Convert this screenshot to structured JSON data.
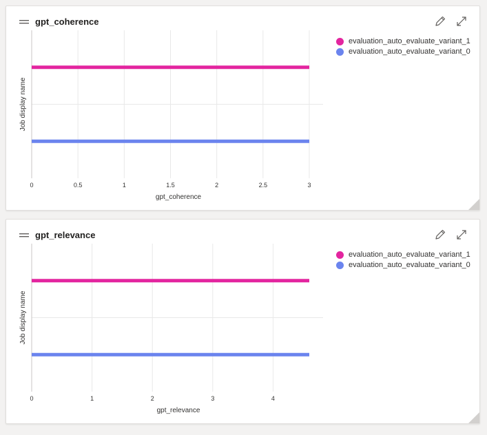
{
  "colors": {
    "variant_1": "#e3259f",
    "variant_0": "#6b84ee",
    "grid": "#e8e8e8",
    "text": "#323130"
  },
  "icons": {
    "drag": "drag-handle-icon",
    "edit": "pencil-icon",
    "expand": "expand-icon",
    "resize": "resize-corner-icon"
  },
  "charts": [
    {
      "title": "gpt_coherence",
      "xlabel": "gpt_coherence",
      "ylabel": "Job display name",
      "legend": [
        "evaluation_auto_evaluate_variant_1",
        "evaluation_auto_evaluate_variant_0"
      ]
    },
    {
      "title": "gpt_relevance",
      "xlabel": "gpt_relevance",
      "ylabel": "Job display name",
      "legend": [
        "evaluation_auto_evaluate_variant_1",
        "evaluation_auto_evaluate_variant_0"
      ]
    }
  ],
  "chart_data": [
    {
      "type": "bar",
      "orientation": "horizontal",
      "title": "gpt_coherence",
      "xlabel": "gpt_coherence",
      "ylabel": "Job display name",
      "categories": [
        "evaluation_auto_evaluate_variant_1",
        "evaluation_auto_evaluate_variant_0"
      ],
      "values": [
        3,
        3
      ],
      "xlim": [
        0,
        3
      ],
      "xticks": [
        "0",
        "0.5",
        "1",
        "1.5",
        "2",
        "2.5",
        "3"
      ],
      "grid": true,
      "legend_position": "right"
    },
    {
      "type": "bar",
      "orientation": "horizontal",
      "title": "gpt_relevance",
      "xlabel": "gpt_relevance",
      "ylabel": "Job display name",
      "categories": [
        "evaluation_auto_evaluate_variant_1",
        "evaluation_auto_evaluate_variant_0"
      ],
      "values": [
        4.6,
        4.6
      ],
      "xlim": [
        0,
        4.6
      ],
      "xticks": [
        "0",
        "1",
        "2",
        "3",
        "4"
      ],
      "grid": true,
      "legend_position": "right"
    }
  ]
}
